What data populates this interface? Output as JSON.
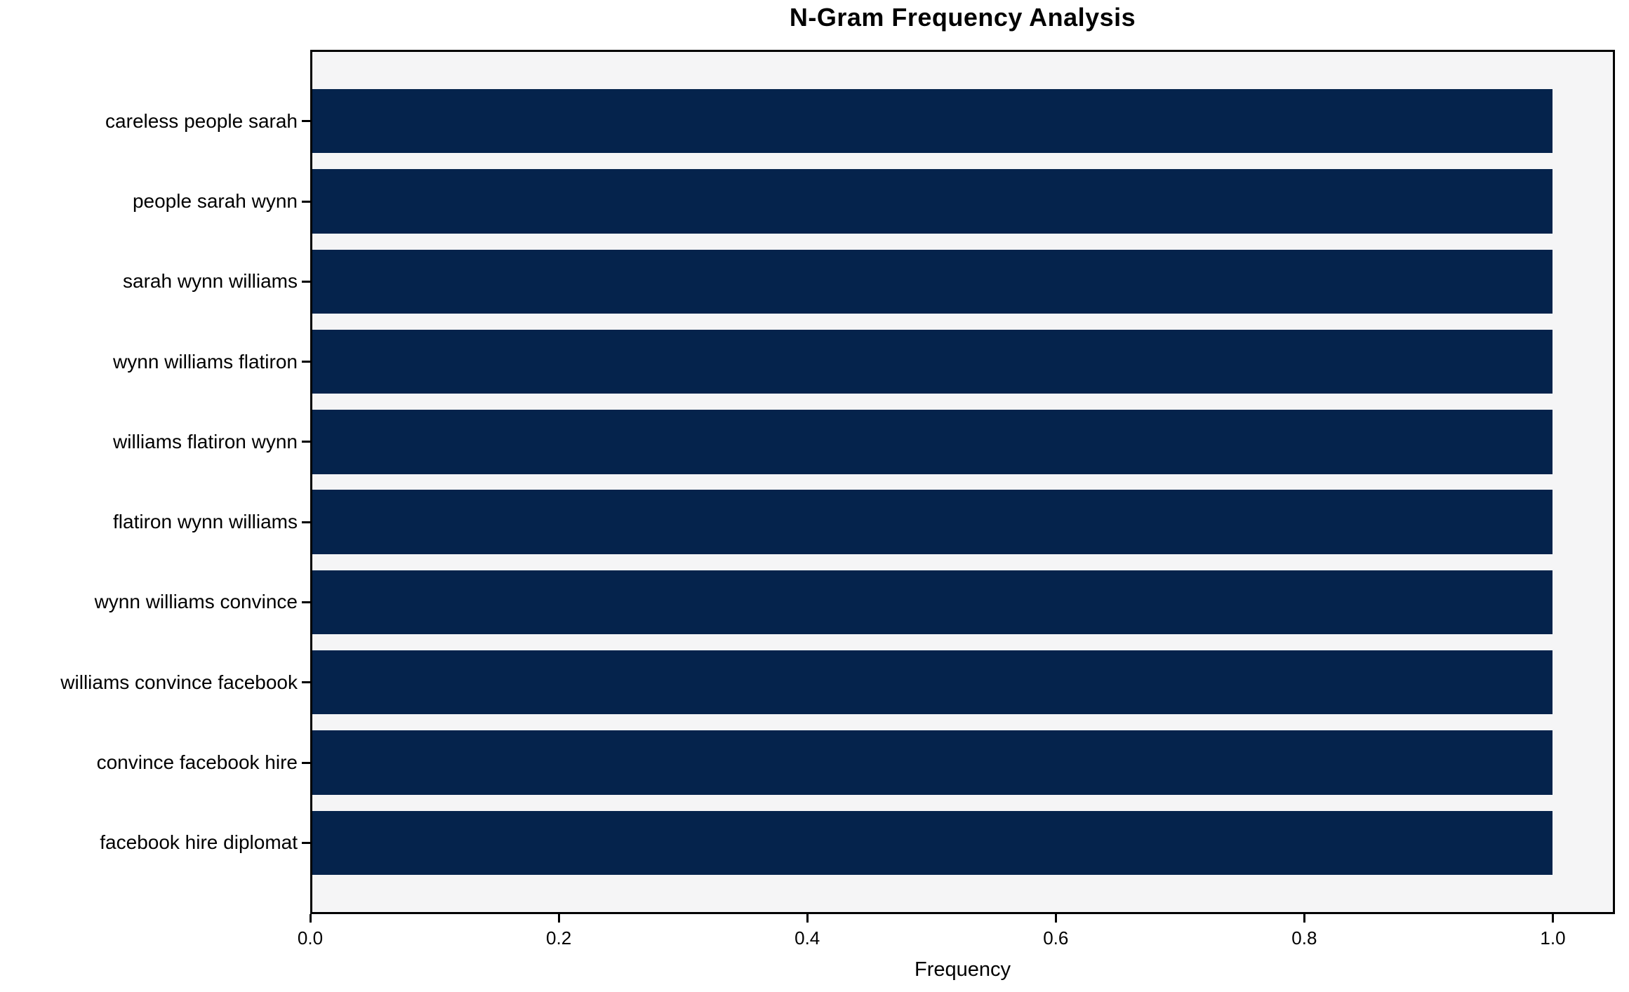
{
  "figure": {
    "background_color": "#ffffff",
    "plot_background_color": "#f5f5f6",
    "spine_color": "#000000",
    "text_color": "#000000"
  },
  "chart_data": {
    "type": "bar",
    "orientation": "horizontal",
    "title": "N-Gram Frequency Analysis",
    "xlabel": "Frequency",
    "ylabel": "",
    "categories": [
      "careless people sarah",
      "people sarah wynn",
      "sarah wynn williams",
      "wynn williams flatiron",
      "williams flatiron wynn",
      "flatiron wynn williams",
      "wynn williams convince",
      "williams convince facebook",
      "convince facebook hire",
      "facebook hire diplomat"
    ],
    "values": [
      1.0,
      1.0,
      1.0,
      1.0,
      1.0,
      1.0,
      1.0,
      1.0,
      1.0,
      1.0
    ],
    "bar_color": "#05234c",
    "xlim": [
      0,
      1.05
    ],
    "xticks": [
      0.0,
      0.2,
      0.4,
      0.6,
      0.8,
      1.0
    ],
    "xtick_labels": [
      "0.0",
      "0.2",
      "0.4",
      "0.6",
      "0.8",
      "1.0"
    ],
    "grid": false,
    "legend": null
  }
}
